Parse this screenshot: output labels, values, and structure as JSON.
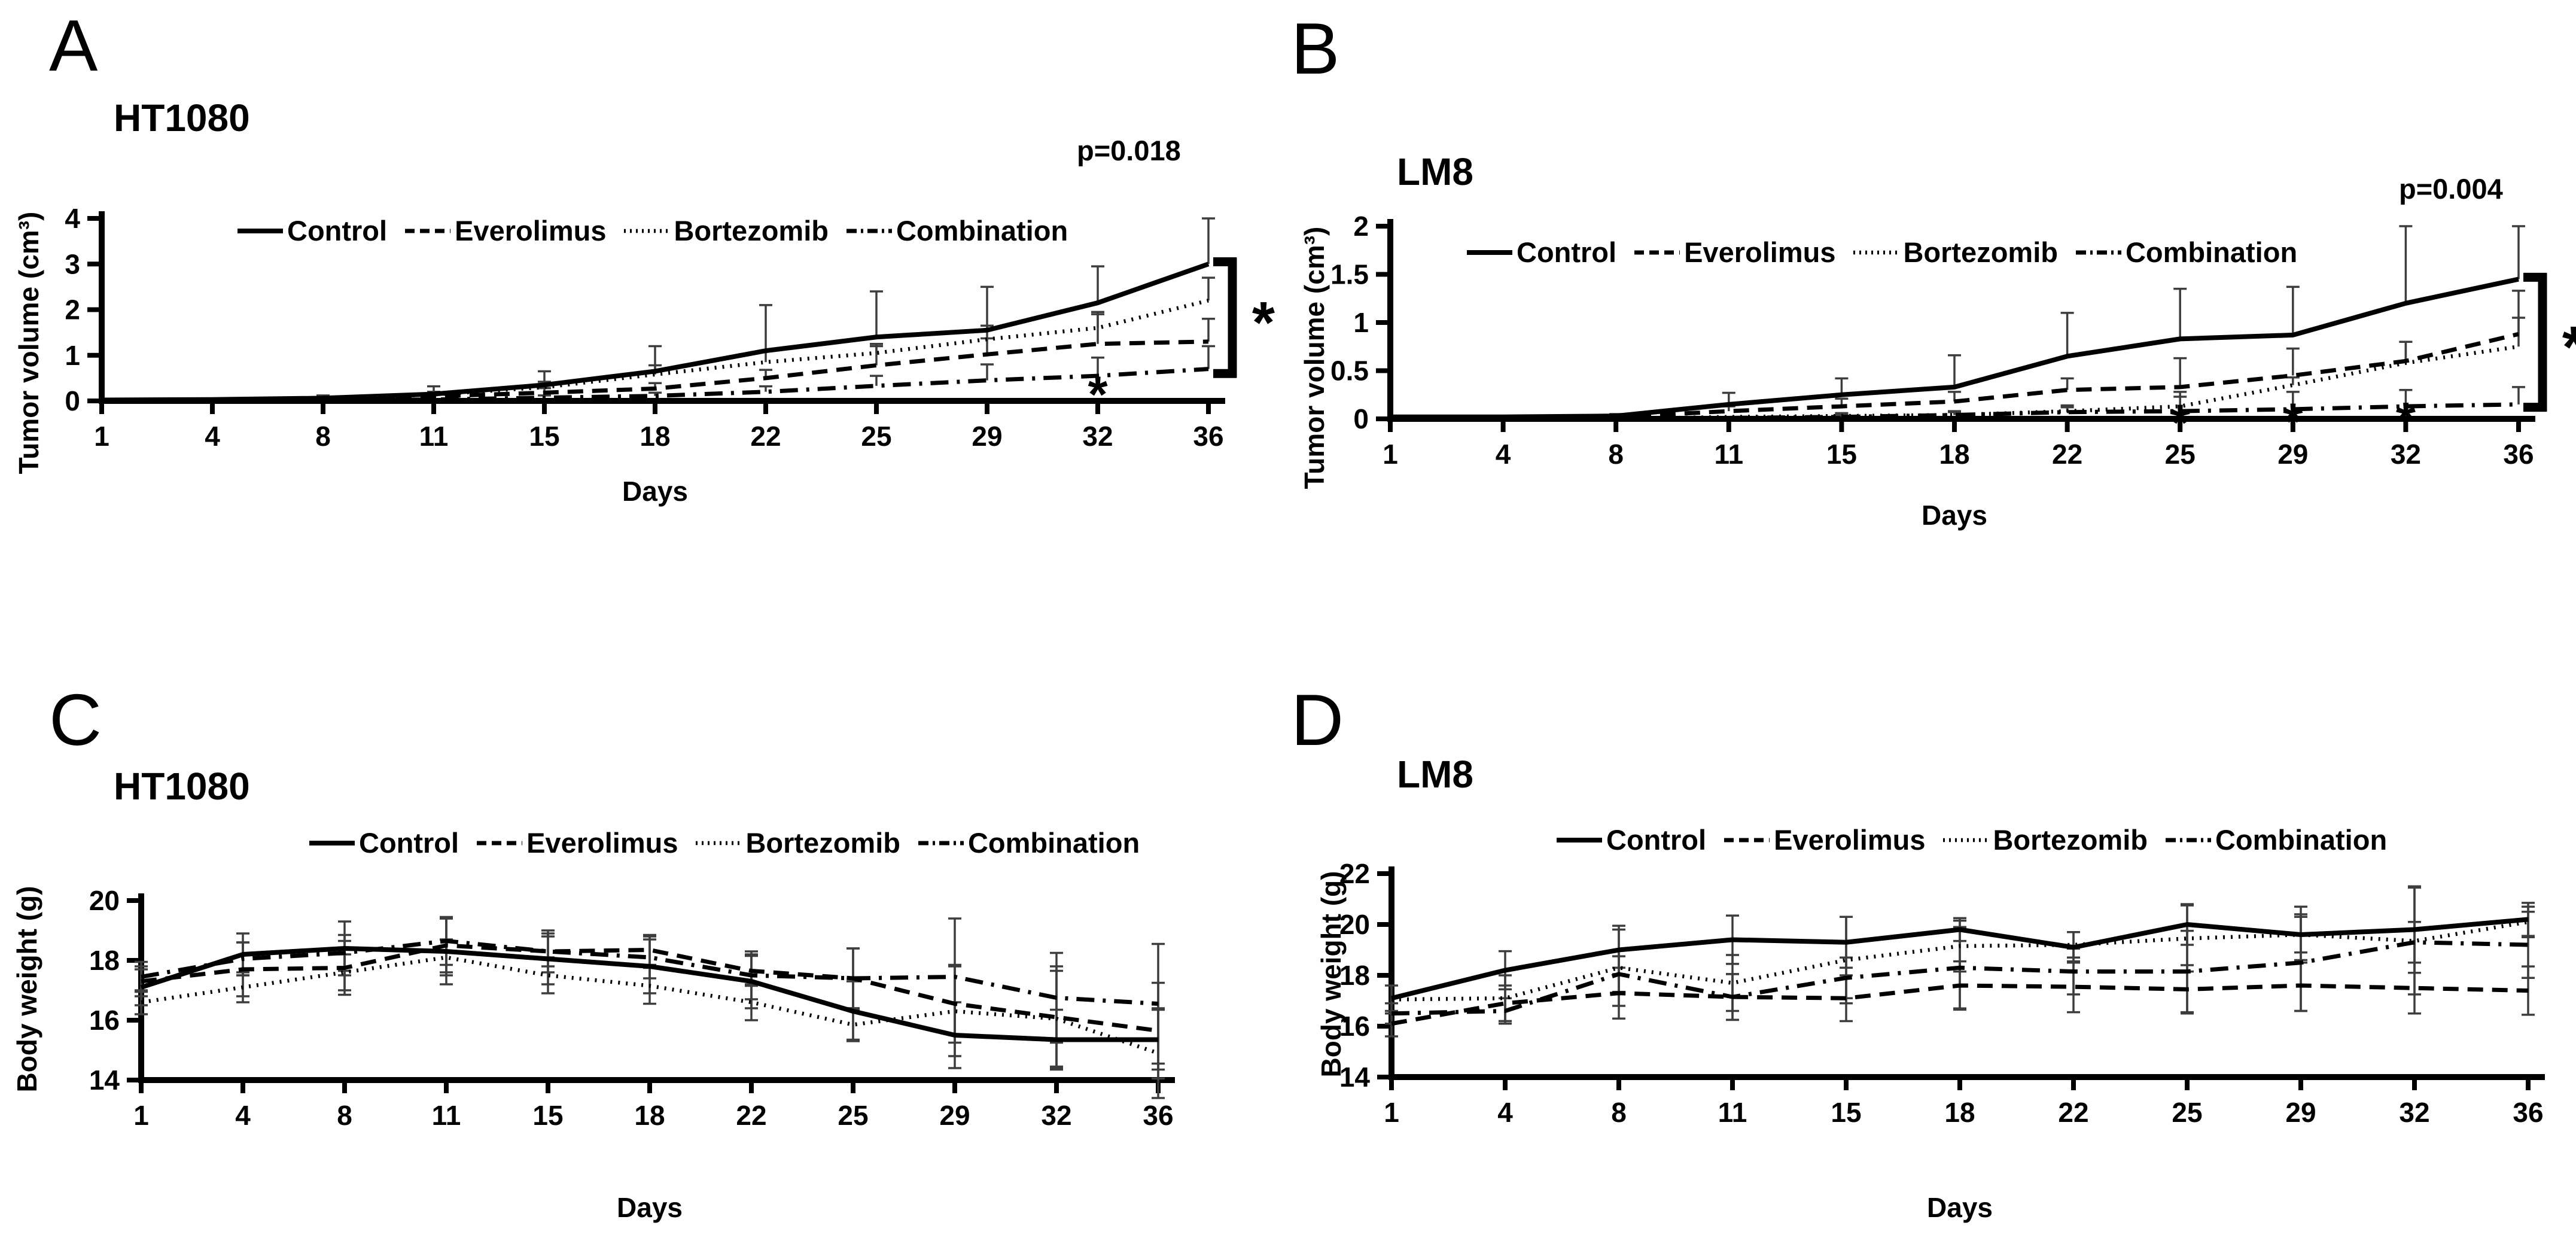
{
  "figure": {
    "background_color": "#ffffff",
    "ink_color": "#000000",
    "error_bar_color": "#3d3d3d"
  },
  "chart_data": [
    {
      "id": "a",
      "panel_label": "A",
      "title": "HT1080",
      "p_value": "p=0.018",
      "type": "line",
      "xlabel": "Days",
      "ylabel": "Tumor volume (cm³)",
      "legend_position": "top-inside",
      "grid": false,
      "x_categories": [
        1,
        4,
        8,
        11,
        15,
        18,
        22,
        25,
        29,
        32,
        36
      ],
      "ylim": [
        0,
        4
      ],
      "yticks": [
        0,
        1,
        2,
        3,
        4
      ],
      "ytick_labels": [
        "0",
        "1",
        "2",
        "3",
        "4"
      ],
      "err_direction": "up",
      "series": [
        {
          "name": "Control",
          "style": "solid",
          "values": [
            0.02,
            0.03,
            0.06,
            0.15,
            0.35,
            0.65,
            1.1,
            1.4,
            1.55,
            2.15,
            3.0
          ],
          "err": [
            0,
            0,
            0.06,
            0.17,
            0.3,
            0.55,
            1.0,
            1.0,
            0.95,
            0.8,
            1.0
          ]
        },
        {
          "name": "Everolimus",
          "style": "dashed",
          "values": [
            0,
            0,
            0.04,
            0.1,
            0.18,
            0.27,
            0.5,
            0.78,
            1.02,
            1.25,
            1.3
          ],
          "err": [
            0,
            0,
            0,
            0.05,
            0.1,
            0.12,
            0.18,
            0.42,
            0.35,
            0.65,
            0.5
          ]
        },
        {
          "name": "Bortezomib",
          "style": "dotted",
          "values": [
            0,
            0,
            0.05,
            0.14,
            0.3,
            0.58,
            0.85,
            1.05,
            1.35,
            1.6,
            2.2
          ],
          "err": [
            0,
            0,
            0,
            0.06,
            0.12,
            0.2,
            0.25,
            0.2,
            0.3,
            0.35,
            0.5
          ]
        },
        {
          "name": "Combination",
          "style": "dashdot",
          "values": [
            0,
            0,
            0.01,
            0.03,
            0.07,
            0.11,
            0.2,
            0.33,
            0.45,
            0.55,
            0.7
          ],
          "err": [
            0,
            0,
            0,
            0,
            0.05,
            0.07,
            0.12,
            0.22,
            0.35,
            0.4,
            0.5
          ]
        }
      ],
      "asterisks": [
        {
          "x_index": 9,
          "y": 0.35,
          "symbol": "*"
        }
      ],
      "bracket": {
        "y_top": 3.05,
        "y_bottom": 0.6,
        "symbol": "*"
      }
    },
    {
      "id": "b",
      "panel_label": "B",
      "title": "LM8",
      "p_value": "p=0.004",
      "type": "line",
      "xlabel": "Days",
      "ylabel": "Tumor volume (cm³)",
      "legend_position": "top-inside",
      "grid": false,
      "x_categories": [
        1,
        4,
        8,
        11,
        15,
        18,
        22,
        25,
        29,
        32,
        36
      ],
      "ylim": [
        0,
        2
      ],
      "yticks": [
        0,
        0.5,
        1,
        1.5,
        2
      ],
      "ytick_labels": [
        "0",
        "0.5",
        "1",
        "1.5",
        "2"
      ],
      "err_direction": "up",
      "series": [
        {
          "name": "Control",
          "style": "solid",
          "values": [
            0.02,
            0.02,
            0.03,
            0.15,
            0.25,
            0.33,
            0.65,
            0.83,
            0.87,
            1.2,
            1.45
          ],
          "err": [
            0,
            0,
            0.02,
            0.12,
            0.17,
            0.33,
            0.45,
            0.52,
            0.5,
            0.8,
            0.55
          ]
        },
        {
          "name": "Everolimus",
          "style": "dashed",
          "values": [
            0.01,
            0.01,
            0.02,
            0.08,
            0.13,
            0.18,
            0.3,
            0.33,
            0.45,
            0.6,
            0.88
          ],
          "err": [
            0,
            0,
            0,
            0.05,
            0.08,
            0.1,
            0.12,
            0.3,
            0.28,
            0.2,
            0.45
          ]
        },
        {
          "name": "Bortezomib",
          "style": "dotted",
          "values": [
            0,
            0,
            0,
            0.02,
            0.03,
            0.04,
            0.08,
            0.13,
            0.35,
            0.58,
            0.75
          ],
          "err": [
            0,
            0,
            0,
            0,
            0.03,
            0.04,
            0.06,
            0.1,
            0.08,
            0.22,
            0.3
          ]
        },
        {
          "name": "Combination",
          "style": "dashdot",
          "values": [
            0,
            0,
            0,
            0.01,
            0.02,
            0.04,
            0.07,
            0.08,
            0.1,
            0.13,
            0.15
          ],
          "err": [
            0,
            0,
            0,
            0,
            0.02,
            0.03,
            0.05,
            0.2,
            0.18,
            0.17,
            0.18
          ]
        }
      ],
      "asterisks": [
        {
          "x_index": 7,
          "y": 0.06,
          "symbol": "*"
        },
        {
          "x_index": 8,
          "y": 0.07,
          "symbol": "*"
        },
        {
          "x_index": 9,
          "y": 0.08,
          "symbol": "*"
        }
      ],
      "bracket": {
        "y_top": 1.47,
        "y_bottom": 0.12,
        "symbol": "*"
      }
    },
    {
      "id": "c",
      "panel_label": "C",
      "title": "HT1080",
      "type": "line",
      "xlabel": "Days",
      "ylabel": "Body weight (g)",
      "legend_position": "top",
      "grid": false,
      "x_categories": [
        1,
        4,
        8,
        11,
        15,
        18,
        22,
        25,
        29,
        32,
        36
      ],
      "ylim": [
        14,
        20
      ],
      "yticks": [
        14,
        16,
        18,
        20
      ],
      "ytick_labels": [
        "14",
        "16",
        "18",
        "20"
      ],
      "err_direction": "both",
      "series": [
        {
          "name": "Control",
          "style": "solid",
          "values": [
            17.1,
            18.2,
            18.4,
            18.3,
            18.05,
            17.8,
            17.3,
            16.3,
            15.5,
            15.35,
            15.35
          ],
          "err": [
            0.6,
            0.7,
            0.9,
            1.1,
            0.85,
            0.9,
            0.9,
            1.0,
            1.1,
            1.0,
            1.0
          ]
        },
        {
          "name": "Everolimus",
          "style": "dashed",
          "values": [
            17.3,
            17.7,
            17.75,
            18.5,
            18.3,
            18.35,
            17.65,
            17.4,
            16.55,
            16.1,
            15.65
          ],
          "err": [
            0.5,
            0.9,
            0.9,
            0.9,
            0.5,
            0.5,
            0.5,
            1.0,
            1.3,
            1.7,
            1.6
          ]
        },
        {
          "name": "Bortezomib",
          "style": "dotted",
          "values": [
            16.6,
            17.1,
            17.6,
            18.1,
            17.5,
            17.15,
            16.6,
            15.85,
            16.3,
            16.05,
            14.9
          ],
          "err": [
            0.4,
            0.5,
            0.6,
            0.6,
            0.6,
            0.6,
            0.6,
            0.5,
            1.5,
            1.6,
            1.5
          ]
        },
        {
          "name": "Combination",
          "style": "dashdot",
          "values": [
            17.45,
            18.05,
            18.25,
            18.65,
            18.3,
            18.1,
            17.5,
            17.4,
            17.45,
            16.75,
            16.55
          ],
          "err": [
            0.5,
            0.55,
            0.6,
            0.8,
            0.7,
            0.7,
            0.8,
            1.0,
            1.95,
            1.5,
            2.0
          ]
        }
      ]
    },
    {
      "id": "d",
      "panel_label": "D",
      "title": "LM8",
      "type": "line",
      "xlabel": "Days",
      "ylabel": "Body weight (g)",
      "legend_position": "top",
      "grid": false,
      "x_categories": [
        1,
        4,
        8,
        11,
        15,
        18,
        22,
        25,
        29,
        32,
        36
      ],
      "ylim": [
        14,
        22
      ],
      "yticks": [
        14,
        16,
        18,
        20,
        22
      ],
      "ytick_labels": [
        "14",
        "16",
        "18",
        "20",
        "22"
      ],
      "err_direction": "both",
      "series": [
        {
          "name": "Control",
          "style": "solid",
          "values": [
            17.1,
            18.2,
            19.0,
            19.4,
            19.3,
            19.8,
            19.1,
            20.0,
            19.6,
            19.8,
            20.2
          ],
          "err": [
            0,
            0.75,
            0.95,
            0.95,
            1.0,
            0.45,
            0.6,
            0.8,
            0.7,
            1.7,
            0.65
          ]
        },
        {
          "name": "Everolimus",
          "style": "dashed",
          "values": [
            16.1,
            16.9,
            17.3,
            17.15,
            17.1,
            17.6,
            17.55,
            17.45,
            17.6,
            17.5,
            17.4
          ],
          "err": [
            0.5,
            0.7,
            1.0,
            0.9,
            0.9,
            0.95,
            1.0,
            0.95,
            1.0,
            1.0,
            0.95
          ]
        },
        {
          "name": "Bortezomib",
          "style": "dotted",
          "values": [
            17.05,
            17.1,
            18.3,
            17.7,
            18.6,
            19.15,
            19.2,
            19.45,
            19.6,
            19.35,
            20.1
          ],
          "err": [
            0.55,
            0.9,
            1.5,
            1.1,
            1.7,
            1.0,
            0.5,
            1.3,
            1.1,
            2.1,
            0.6
          ]
        },
        {
          "name": "Combination",
          "style": "dashdot",
          "values": [
            16.5,
            16.6,
            18.05,
            17.15,
            17.9,
            18.3,
            18.15,
            18.15,
            18.5,
            19.3,
            19.2
          ],
          "err": [
            0.4,
            0.5,
            0.7,
            0.9,
            0.8,
            1.6,
            0.9,
            1.6,
            1.9,
            0.8,
            1.3
          ]
        }
      ]
    }
  ]
}
